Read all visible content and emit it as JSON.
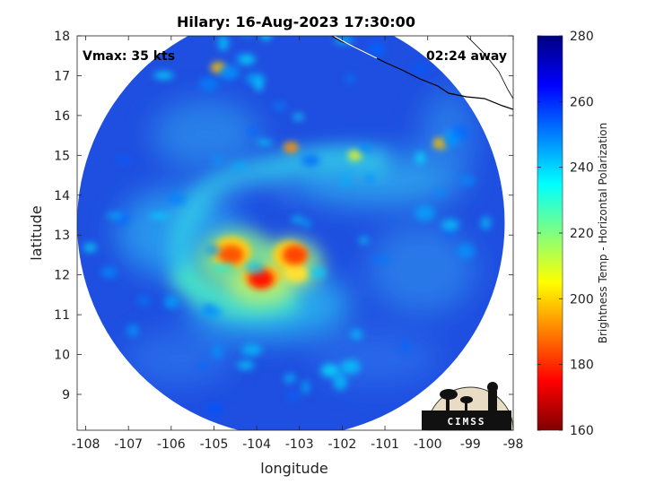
{
  "chart_data": {
    "type": "heatmap",
    "title": "Hilary: 16-Aug-2023 17:30:00",
    "vmax_label": "Vmax: 35 kts",
    "time_away": "02:24 away",
    "xlabel": "longitude",
    "ylabel": "latitude",
    "xlim": [
      -108.2,
      -98
    ],
    "ylim": [
      8.1,
      18
    ],
    "x_ticks": [
      -108,
      -107,
      -106,
      -105,
      -104,
      -103,
      -102,
      -101,
      -100,
      -99,
      -98
    ],
    "y_ticks": [
      9,
      10,
      11,
      12,
      13,
      14,
      15,
      16,
      17,
      18
    ],
    "colorbar": {
      "label": "Brightness Temp - Horizontal Polarization",
      "range": [
        160,
        280
      ],
      "ticks": [
        160,
        180,
        200,
        220,
        240,
        260,
        280
      ]
    },
    "swath": {
      "center": [
        -103.2,
        13.3
      ],
      "radius_deg": 5.0
    },
    "features": [
      {
        "name": "eyewall-arc-west",
        "lon": -104.6,
        "lat": 12.5,
        "tb": 185
      },
      {
        "name": "eyewall-arc-south",
        "lon": -103.9,
        "lat": 11.9,
        "tb": 178
      },
      {
        "name": "eyewall-arc-east",
        "lon": -103.1,
        "lat": 12.5,
        "tb": 183
      },
      {
        "name": "cell-north",
        "lon": -103.2,
        "lat": 15.2,
        "tb": 195
      },
      {
        "name": "cell-nw",
        "lon": -104.9,
        "lat": 17.2,
        "tb": 200
      },
      {
        "name": "cell-ne",
        "lon": -99.7,
        "lat": 15.3,
        "tb": 200
      },
      {
        "name": "cell-east",
        "lon": -101.7,
        "lat": 15.0,
        "tb": 212
      }
    ]
  },
  "logo": {
    "text": "CIMSS"
  },
  "colors": {
    "background_swath": "#1f4fe0",
    "plot_bg": "#ffffff"
  }
}
